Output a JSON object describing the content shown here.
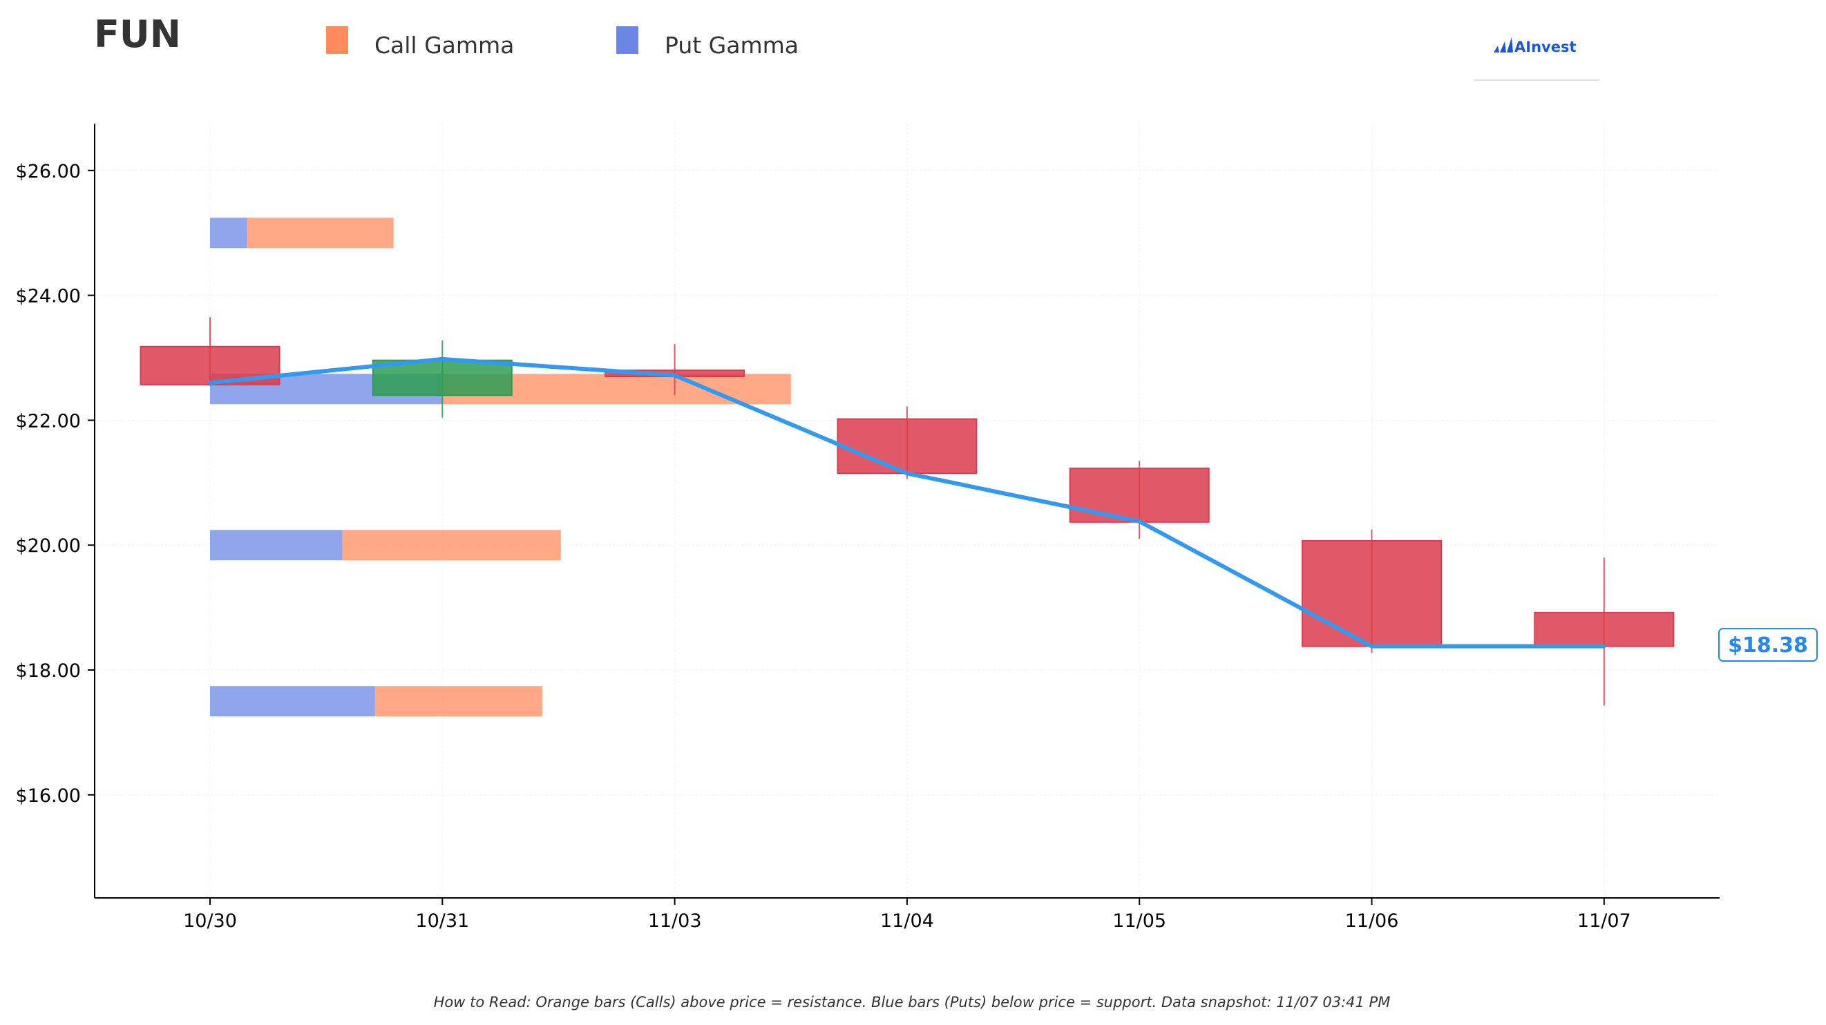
{
  "header": {
    "ticker": "FUN",
    "brand": "AInvest"
  },
  "legend": [
    {
      "label": "Call Gamma",
      "color": "#ff8c5f"
    },
    {
      "label": "Put Gamma",
      "color": "#6a87e6"
    }
  ],
  "footer": {
    "note": "How to Read: Orange bars (Calls) above price = resistance. Blue bars (Puts) below price = support. Data snapshot: 11/07 03:41 PM"
  },
  "chart_data": {
    "type": "candlestick",
    "ticker": "FUN",
    "categories": [
      "10/30",
      "10/31",
      "11/03",
      "11/04",
      "11/05",
      "11/06",
      "11/07"
    ],
    "y_ticks": [
      "$16.00",
      "$18.00",
      "$20.00",
      "$22.00",
      "$24.00",
      "$26.00"
    ],
    "y_tick_values": [
      16,
      18,
      20,
      22,
      24,
      26
    ],
    "ylim": [
      14.35,
      26.75
    ],
    "grid": true,
    "legend_position": "top-left",
    "candles": [
      {
        "date": "10/30",
        "open": 23.18,
        "high": 23.65,
        "low": 22.55,
        "close": 22.57
      },
      {
        "date": "10/31",
        "open": 22.4,
        "high": 23.28,
        "low": 22.04,
        "close": 22.96
      },
      {
        "date": "11/03",
        "open": 22.8,
        "high": 23.22,
        "low": 22.4,
        "close": 22.7
      },
      {
        "date": "11/04",
        "open": 22.02,
        "high": 22.22,
        "low": 21.06,
        "close": 21.15
      },
      {
        "date": "11/05",
        "open": 21.23,
        "high": 21.35,
        "low": 20.1,
        "close": 20.37
      },
      {
        "date": "11/06",
        "open": 20.07,
        "high": 20.25,
        "low": 18.27,
        "close": 18.38
      },
      {
        "date": "11/07",
        "open": 18.92,
        "high": 19.8,
        "low": 17.43,
        "close": 18.38
      }
    ],
    "close_line": [
      22.6,
      22.98,
      22.72,
      21.15,
      20.38,
      18.38,
      18.38
    ],
    "last_price": 18.38,
    "last_price_label": "$18.38",
    "gamma_levels": [
      {
        "strike": 25.0,
        "put": 0.16,
        "call": 0.63
      },
      {
        "strike": 22.5,
        "put": 1.0,
        "call": 1.5
      },
      {
        "strike": 20.0,
        "put": 0.57,
        "call": 0.94
      },
      {
        "strike": 17.5,
        "put": 0.71,
        "call": 0.72
      }
    ],
    "colors": {
      "call": "#ff8c5f",
      "put": "#6a87e6",
      "up": "#2e9e54",
      "down": "#dc3c4e",
      "line": "#3399ee",
      "price_label": "#2288ee",
      "brand": "#1a56db"
    }
  }
}
